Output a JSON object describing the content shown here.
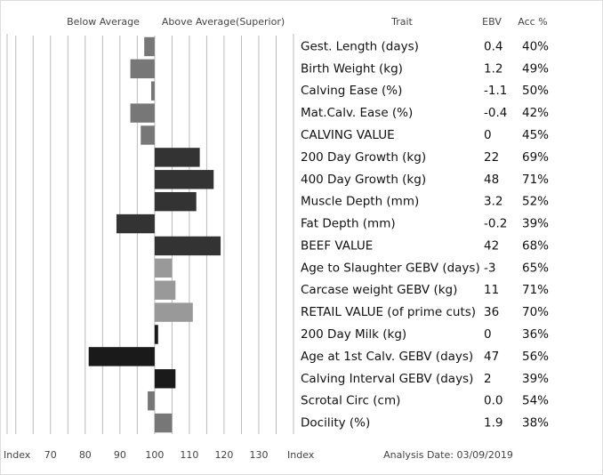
{
  "chart_data": {
    "type": "bar",
    "orientation": "horizontal",
    "left_header": "Below Average",
    "right_header": "Above Average(Superior)",
    "trait_header": "Trait",
    "ebv_header": "EBV",
    "acc_header": "Acc %",
    "x_label": "Index",
    "table_label": "Index",
    "analysis_date": "Analysis Date: 03/09/2019",
    "categories": [
      "Gest. Length (days)",
      "Birth Weight (kg)",
      "Calving Ease (%)",
      "Mat.Calv. Ease (%)",
      "CALVING VALUE",
      "200 Day Growth (kg)",
      "400 Day Growth (kg)",
      "Muscle Depth (mm)",
      "Fat Depth (mm)",
      "BEEF VALUE",
      "Age to Slaughter GEBV (days)",
      "Carcase weight GEBV (kg)",
      "RETAIL VALUE (of prime cuts)",
      "200 Day Milk (kg)",
      "Age at 1st Calv. GEBV (days)",
      "Calving Interval GEBV (days)",
      "Scrotal Circ (cm)",
      "Docility (%)"
    ],
    "values": [
      97,
      93,
      99,
      93,
      96,
      113,
      117,
      112,
      89,
      119,
      105,
      106,
      111,
      101,
      81,
      106,
      98,
      105
    ],
    "colors": [
      "#777777",
      "#777777",
      "#777777",
      "#777777",
      "#777777",
      "#333333",
      "#333333",
      "#333333",
      "#333333",
      "#333333",
      "#999999",
      "#999999",
      "#999999",
      "#1a1a1a",
      "#1a1a1a",
      "#1a1a1a",
      "#777777",
      "#777777"
    ],
    "ebv": [
      "0.4",
      "1.2",
      "-1.1",
      "-0.4",
      "0",
      "22",
      "48",
      "3.2",
      "-0.2",
      "42",
      "-3",
      "11",
      "36",
      "0",
      "47",
      "2",
      "0.0",
      "1.9"
    ],
    "acc": [
      "40%",
      "49%",
      "50%",
      "42%",
      "45%",
      "69%",
      "71%",
      "52%",
      "39%",
      "68%",
      "65%",
      "71%",
      "70%",
      "36%",
      "56%",
      "39%",
      "54%",
      "38%"
    ],
    "xlim": [
      57.5,
      140
    ],
    "xticks": [
      70,
      80,
      90,
      100,
      110,
      120,
      130
    ],
    "minor_xticks": [
      60,
      65,
      75,
      85,
      95,
      105,
      115,
      125,
      135
    ],
    "base": 100,
    "grid": true
  }
}
